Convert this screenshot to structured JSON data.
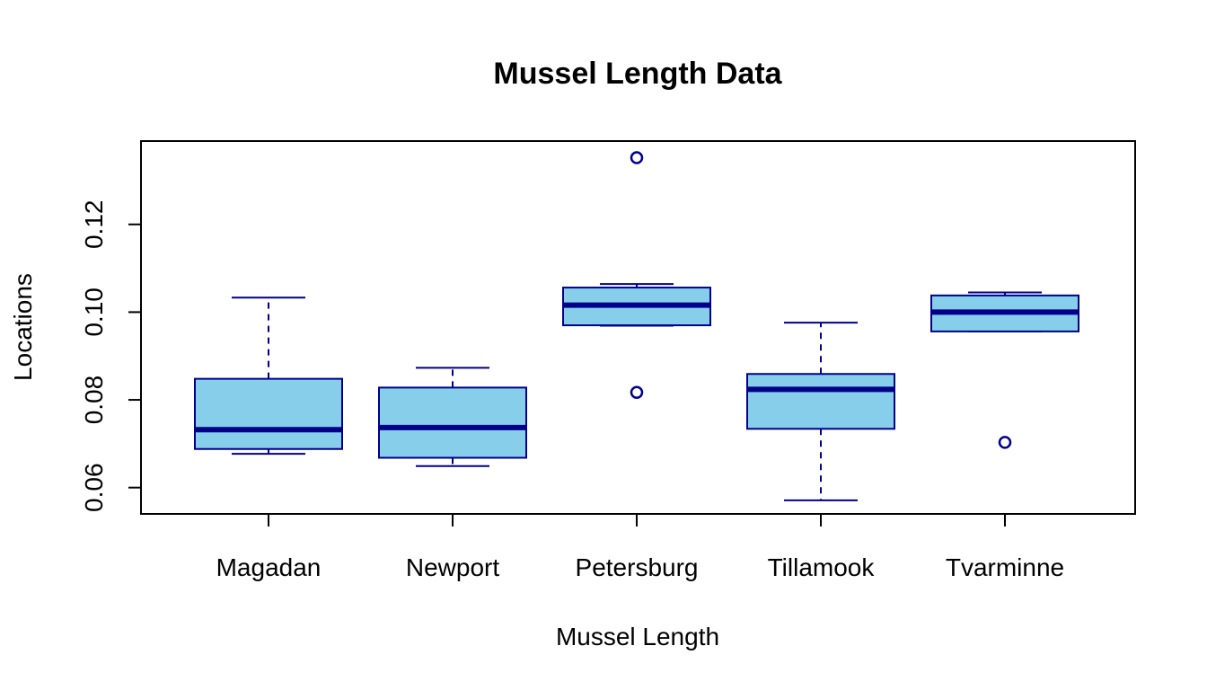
{
  "chart_data": {
    "type": "boxplot",
    "title": "Mussel Length Data",
    "xlabel": "Mussel Length",
    "ylabel": "Locations",
    "ylim": [
      0.054,
      0.139
    ],
    "yticks": [
      0.06,
      0.08,
      0.1,
      0.12
    ],
    "ytick_labels": [
      "0.06",
      "0.08",
      "0.10",
      "0.12"
    ],
    "categories": [
      "Magadan",
      "Newport",
      "Petersburg",
      "Tillamook",
      "Tvarminne"
    ],
    "boxes": [
      {
        "category": "Magadan",
        "whisker_low": 0.0677,
        "q1": 0.0688,
        "median": 0.0732,
        "q3": 0.0848,
        "whisker_high": 0.1033,
        "outliers": []
      },
      {
        "category": "Newport",
        "whisker_low": 0.0649,
        "q1": 0.0668,
        "median": 0.0737,
        "q3": 0.0828,
        "whisker_high": 0.0873,
        "outliers": []
      },
      {
        "category": "Petersburg",
        "whisker_low": 0.0969,
        "q1": 0.097,
        "median": 0.1016,
        "q3": 0.1056,
        "whisker_high": 0.1064,
        "outliers": [
          0.0817,
          0.1352
        ]
      },
      {
        "category": "Tillamook",
        "whisker_low": 0.0571,
        "q1": 0.0734,
        "median": 0.0824,
        "q3": 0.0859,
        "whisker_high": 0.0976,
        "outliers": []
      },
      {
        "category": "Tvarminne",
        "whisker_low": 0.0956,
        "q1": 0.0956,
        "median": 0.1,
        "q3": 0.1038,
        "whisker_high": 0.1045,
        "outliers": [
          0.0703
        ]
      }
    ],
    "box_fill": "#87CEEB",
    "box_border": "#00008B",
    "grid": false,
    "legend": "none"
  }
}
